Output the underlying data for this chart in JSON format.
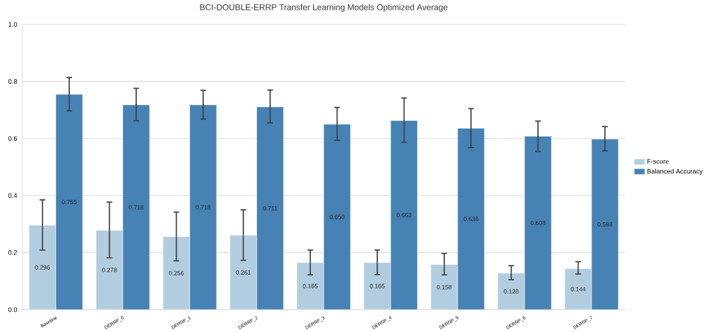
{
  "chart_data": {
    "type": "bar",
    "title": "BCI-DOUBLE-ERRP Transfer Learning Models Optimized Average",
    "categories": [
      "Baseline",
      "DERRP_0",
      "DERRP_1",
      "DERRP_2",
      "DERRP_3",
      "DERRP_4",
      "DERRP_5",
      "DERRP_6",
      "DERRP_7"
    ],
    "series": [
      {
        "name": "F-score",
        "color": "#b3cde0",
        "values": [
          0.296,
          0.278,
          0.256,
          0.261,
          0.165,
          0.165,
          0.158,
          0.128,
          0.144
        ],
        "value_labels": [
          "0.296",
          "0.278",
          "0.256",
          "0.261",
          "0.165",
          "0.165",
          "0.158",
          "0.128",
          "0.144"
        ],
        "errors": [
          [
            0.209,
            0.385
          ],
          [
            0.182,
            0.377
          ],
          [
            0.171,
            0.342
          ],
          [
            0.173,
            0.35
          ],
          [
            0.122,
            0.209
          ],
          [
            0.123,
            0.209
          ],
          [
            0.122,
            0.197
          ],
          [
            0.105,
            0.154
          ],
          [
            0.125,
            0.168
          ]
        ]
      },
      {
        "name": "Balanced Accuracy",
        "color": "#4682b4",
        "values": [
          0.755,
          0.718,
          0.718,
          0.711,
          0.65,
          0.663,
          0.636,
          0.608,
          0.598
        ],
        "value_labels": [
          "0.755",
          "0.718",
          "0.718",
          "0.711",
          "0.650",
          "0.663",
          "0.636",
          "0.608",
          "0.598"
        ],
        "errors": [
          [
            0.697,
            0.814
          ],
          [
            0.662,
            0.776
          ],
          [
            0.668,
            0.769
          ],
          [
            0.655,
            0.77
          ],
          [
            0.594,
            0.709
          ],
          [
            0.587,
            0.742
          ],
          [
            0.568,
            0.705
          ],
          [
            0.555,
            0.661
          ],
          [
            0.557,
            0.642
          ]
        ]
      }
    ],
    "ylim": [
      0,
      1
    ],
    "yticks": [
      {
        "value": 0,
        "label": "0.0"
      },
      {
        "value": 0.2,
        "label": "0.2"
      },
      {
        "value": 0.4,
        "label": "0.4"
      },
      {
        "value": 0.6,
        "label": "0.6"
      },
      {
        "value": 0.8,
        "label": "0.8"
      },
      {
        "value": 1,
        "label": "1.0"
      }
    ],
    "grid": "y",
    "legend": "right"
  }
}
